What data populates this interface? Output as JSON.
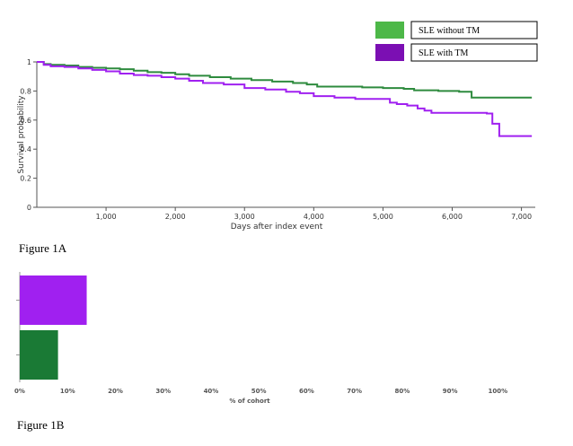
{
  "chart_data": [
    {
      "type": "line",
      "xlabel": "Days after index event",
      "ylabel": "Survival probability",
      "xlim": [
        0,
        7200
      ],
      "ylim": [
        0,
        1
      ],
      "xticks": [
        1000,
        2000,
        3000,
        4000,
        5000,
        6000,
        7000
      ],
      "xtick_labels": [
        "1,000",
        "2,000",
        "3,000",
        "4,000",
        "5,000",
        "6,000",
        "7,000"
      ],
      "yticks": [
        0,
        0.2,
        0.4,
        0.6,
        0.8,
        1
      ],
      "ytick_labels": [
        "0",
        "0.2",
        "0.4",
        "0.6",
        "0.8",
        "1"
      ],
      "grid": false,
      "legend_position": "top-right",
      "series": [
        {
          "name": "SLE without TM",
          "color": "#2e8b3e",
          "legend_color": "#4db848",
          "x": [
            0,
            100,
            200,
            400,
            600,
            800,
            1000,
            1200,
            1400,
            1600,
            1800,
            2000,
            2200,
            2500,
            2800,
            3100,
            3400,
            3700,
            3900,
            4050,
            4300,
            4700,
            5000,
            5300,
            5450,
            5800,
            6100,
            6280,
            6500,
            7150
          ],
          "y": [
            1.0,
            0.985,
            0.98,
            0.975,
            0.965,
            0.96,
            0.955,
            0.95,
            0.94,
            0.93,
            0.925,
            0.915,
            0.905,
            0.895,
            0.885,
            0.875,
            0.865,
            0.855,
            0.845,
            0.83,
            0.83,
            0.825,
            0.82,
            0.815,
            0.805,
            0.8,
            0.795,
            0.755,
            0.755,
            0.755
          ]
        },
        {
          "name": "SLE with TM",
          "color": "#a020f0",
          "legend_color": "#7b0fb3",
          "x": [
            0,
            100,
            200,
            400,
            600,
            800,
            1000,
            1200,
            1400,
            1600,
            1800,
            2000,
            2200,
            2400,
            2700,
            3000,
            3300,
            3600,
            3800,
            4000,
            4300,
            4600,
            5000,
            5100,
            5200,
            5350,
            5500,
            5600,
            5700,
            6000,
            6300,
            6500,
            6580,
            6680,
            7150
          ],
          "y": [
            1.0,
            0.98,
            0.97,
            0.965,
            0.955,
            0.945,
            0.935,
            0.92,
            0.91,
            0.905,
            0.895,
            0.885,
            0.87,
            0.855,
            0.845,
            0.82,
            0.81,
            0.795,
            0.785,
            0.765,
            0.755,
            0.745,
            0.745,
            0.72,
            0.71,
            0.7,
            0.68,
            0.665,
            0.65,
            0.65,
            0.65,
            0.645,
            0.575,
            0.49,
            0.49
          ]
        }
      ]
    },
    {
      "type": "bar",
      "orientation": "horizontal",
      "xlabel": "% of cohort",
      "xlim": [
        0,
        105
      ],
      "xticks": [
        0,
        10,
        20,
        30,
        40,
        50,
        60,
        70,
        80,
        90,
        100
      ],
      "xtick_labels": [
        "0%",
        "10%",
        "20%",
        "30%",
        "40%",
        "50%",
        "60%",
        "70%",
        "80%",
        "90%",
        "100%"
      ],
      "grid": false,
      "series": [
        {
          "name": "SLE with TM",
          "color": "#a020f0",
          "value": 14
        },
        {
          "name": "SLE without TM",
          "color": "#1a7a35",
          "value": 8
        }
      ]
    }
  ],
  "captions": {
    "fig1a": "Figure 1A",
    "fig1b": "Figure 1B"
  }
}
